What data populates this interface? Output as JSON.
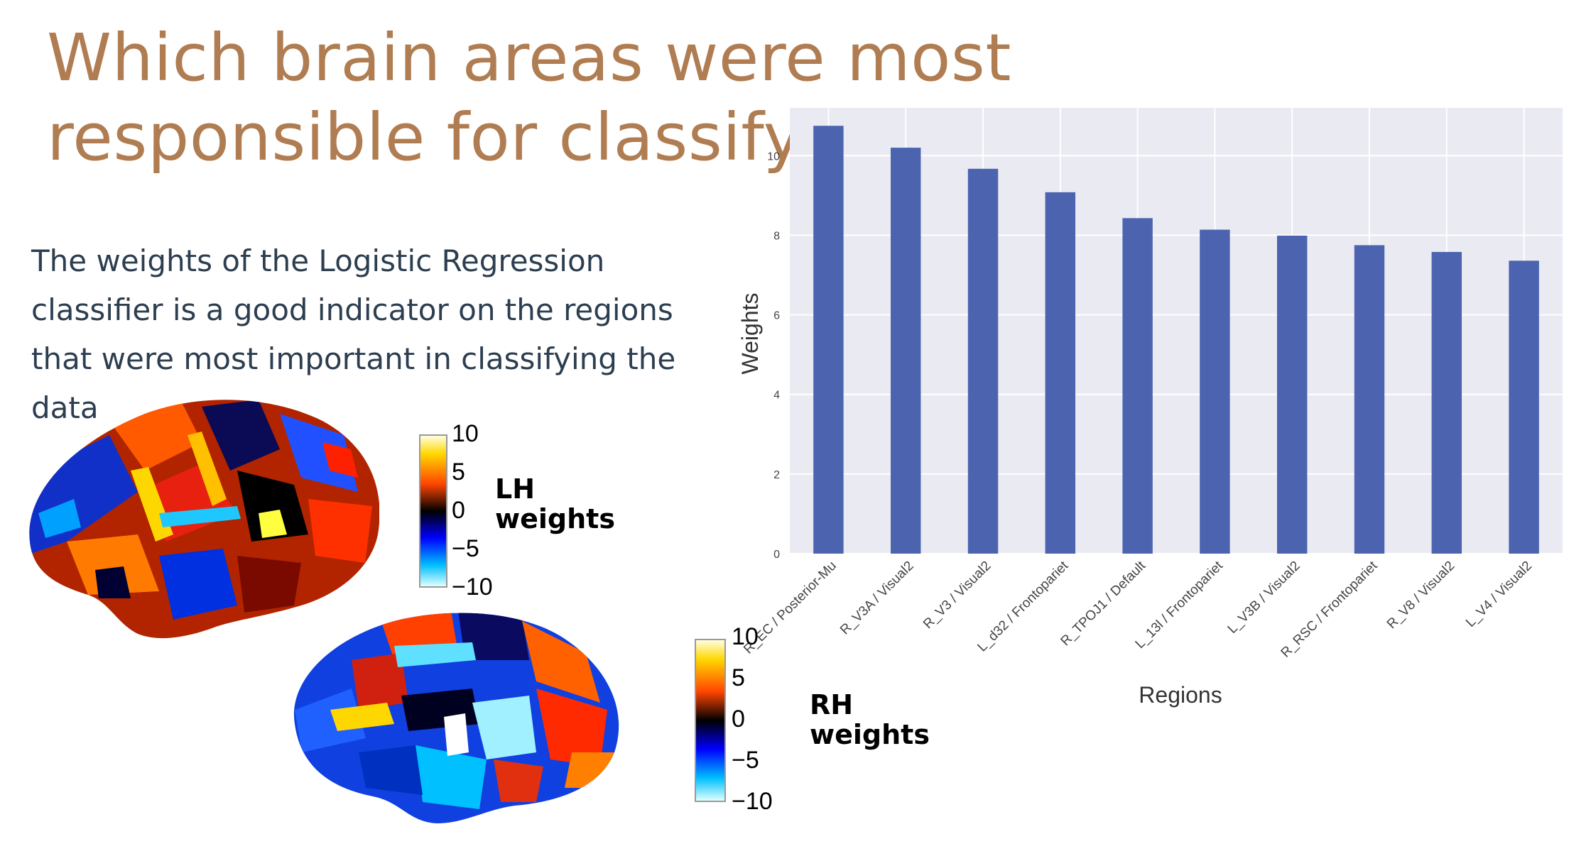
{
  "slide": {
    "title": "Which brain areas were most responsible for classifying the data?",
    "body": "The weights of the Logistic Regression classifier is a good indicator on the regions that were most important in classifying the data"
  },
  "lh_colorbar": {
    "label": "LH weights",
    "ticks": [
      "10",
      "5",
      "0",
      "−5",
      "−10"
    ]
  },
  "rh_colorbar": {
    "label": "RH weights",
    "ticks": [
      "10",
      "5",
      "0",
      "−5",
      "−10"
    ]
  },
  "colors": {
    "title": "#b07d52",
    "body_text": "#2c3e50",
    "bar": "#4c64b0",
    "plot_bg": "#eaeaf2",
    "colormap": [
      "#ffffe0",
      "#ffd700",
      "#ff4500",
      "#000000",
      "#0000ff",
      "#00bfff",
      "#e0ffff"
    ]
  },
  "chart_data": {
    "type": "bar",
    "xlabel": "Regions",
    "ylabel": "Weights",
    "ylim": [
      0,
      11.2
    ],
    "yticks": [
      0,
      2,
      4,
      6,
      8,
      10
    ],
    "grid": true,
    "categories": [
      "R_EC / Posterior-Mu",
      "R_V3A / Visual2",
      "R_V3 / Visual2",
      "L_d32 / Frontopariet",
      "R_TPOJ1 / Default",
      "L_13l / Frontopariet",
      "L_V3B / Visual2",
      "R_RSC / Frontopariet",
      "R_V8 / Visual2",
      "L_V4 / Visual2"
    ],
    "values": [
      10.75,
      10.2,
      9.67,
      9.08,
      8.43,
      8.14,
      7.99,
      7.75,
      7.58,
      7.36
    ]
  }
}
